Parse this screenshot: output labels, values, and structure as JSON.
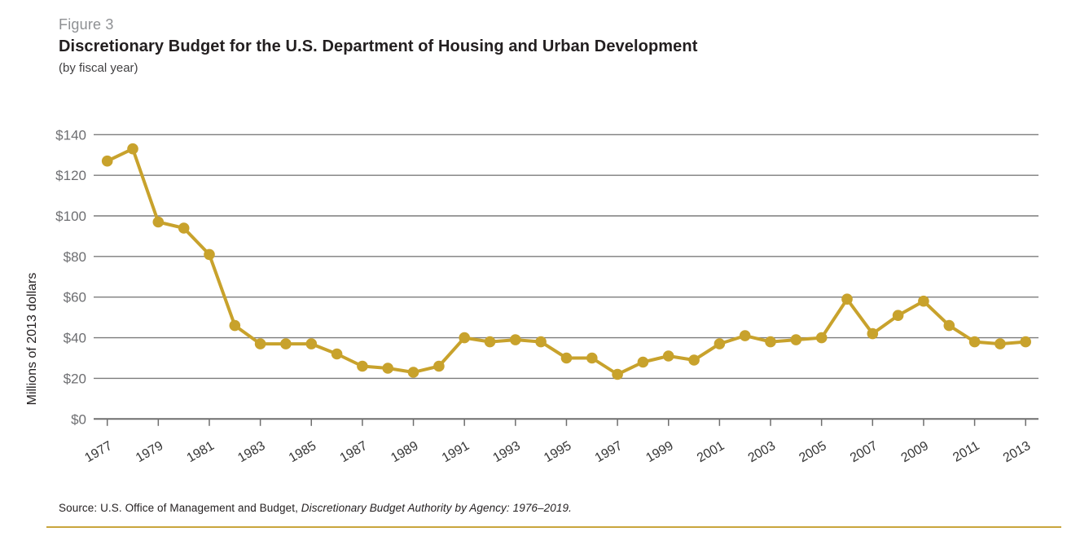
{
  "header": {
    "figure_label": "Figure 3",
    "title": "Discretionary Budget for the U.S. Department of Housing and Urban Development",
    "subtitle": "(by fiscal year)"
  },
  "chart_data": {
    "type": "line",
    "title": "Discretionary Budget for the U.S. Department of Housing and Urban Development",
    "subtitle": "(by fiscal year)",
    "ylabel": "Millions of 2013 dollars",
    "xlabel": "",
    "x": [
      1977,
      1978,
      1979,
      1980,
      1981,
      1982,
      1983,
      1984,
      1985,
      1986,
      1987,
      1988,
      1989,
      1990,
      1991,
      1992,
      1993,
      1994,
      1995,
      1996,
      1997,
      1998,
      1999,
      2000,
      2001,
      2002,
      2003,
      2004,
      2005,
      2006,
      2007,
      2008,
      2009,
      2010,
      2011,
      2012,
      2013
    ],
    "values": [
      127,
      133,
      97,
      94,
      81,
      46,
      37,
      37,
      37,
      32,
      26,
      25,
      23,
      26,
      40,
      38,
      39,
      38,
      30,
      30,
      22,
      28,
      31,
      29,
      37,
      41,
      38,
      39,
      40,
      59,
      42,
      51,
      58,
      46,
      38,
      37,
      38
    ],
    "ylim": [
      0,
      140
    ],
    "ytick_step": 20,
    "ytick_labels": [
      "$0",
      "$20",
      "$40",
      "$60",
      "$80",
      "$100",
      "$120",
      "$140"
    ],
    "xtick_labels": [
      "1977",
      "1979",
      "1981",
      "1983",
      "1985",
      "1987",
      "1989",
      "1991",
      "1993",
      "1995",
      "1997",
      "1999",
      "2001",
      "2003",
      "2005",
      "2007",
      "2009",
      "2011",
      "2013"
    ],
    "grid": "horizontal",
    "legend": "none",
    "marker": "circle"
  },
  "footer": {
    "source_prefix": "Source: U.S. Office of Management and Budget, ",
    "source_citation": "Discretionary Budget Authority by Agency: 1976–2019."
  },
  "colors": {
    "line": "#c8a22c",
    "gridline": "#7c7c7c",
    "axis": "#6e6e6e",
    "y_tick_label": "#6d6e71",
    "x_tick_label": "#363636",
    "axis_title": "#231f20",
    "rule": "#c9a53d"
  }
}
